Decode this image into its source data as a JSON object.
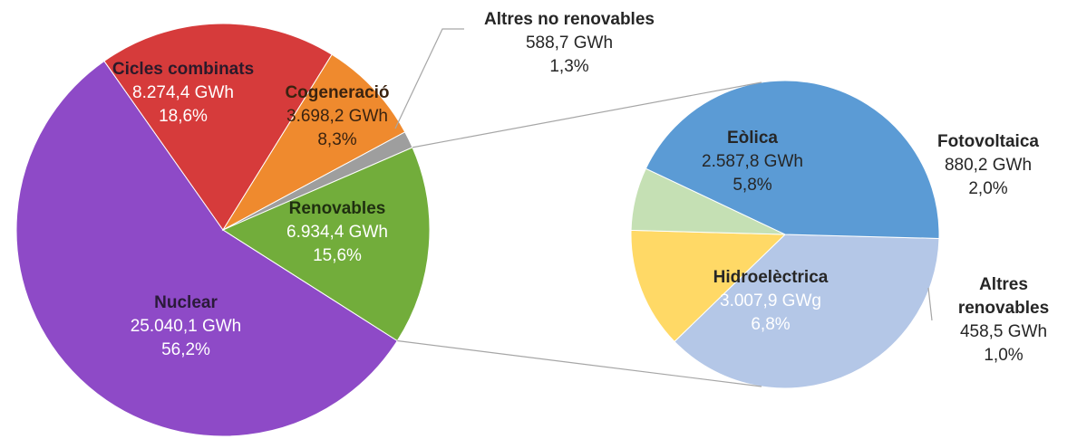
{
  "chart_data": [
    {
      "type": "pie",
      "unit": "GWh",
      "slices": [
        {
          "name": "Nuclear",
          "value_text": "25.040,1 GWh",
          "pct_text": "56,2%",
          "value": 25040.1,
          "pct": 56.2,
          "color": "#8e4ac7"
        },
        {
          "name": "Cicles combinats",
          "value_text": "8.274,4  GWh",
          "pct_text": "18,6%",
          "value": 8274.4,
          "pct": 18.6,
          "color": "#d63b3b"
        },
        {
          "name": "Cogeneració",
          "value_text": "3.698,2 GWh",
          "pct_text": "8,3%",
          "value": 3698.2,
          "pct": 8.3,
          "color": "#ef8a2e"
        },
        {
          "name": "Altres no renovables",
          "value_text": "588,7  GWh",
          "pct_text": "1,3%",
          "value": 588.7,
          "pct": 1.3,
          "color": "#9e9e9e"
        },
        {
          "name": "Renovables",
          "value_text": "6.934,4 GWh",
          "pct_text": "15,6%",
          "value": 6934.4,
          "pct": 15.6,
          "color": "#72ad3b"
        }
      ]
    },
    {
      "type": "pie",
      "unit": "GWh",
      "slices": [
        {
          "name": "Eòlica",
          "value_text": "2.587,8 GWh",
          "pct_text": "5,8%",
          "value": 2587.8,
          "pct": 5.8,
          "color": "#b4c7e7"
        },
        {
          "name": "Fotovoltaica",
          "value_text": "880,2 GWh",
          "pct_text": "2,0%",
          "value": 880.2,
          "pct": 2.0,
          "color": "#ffd966"
        },
        {
          "name": "Altres renovables",
          "value_text": "458,5  GWh",
          "pct_text": "1,0%",
          "value": 458.5,
          "pct": 1.0,
          "color": "#c5e0b4"
        },
        {
          "name": "Hidroelèctrica",
          "value_text": "3.007,9  GWg",
          "pct_text": "6,8%",
          "value": 3007.9,
          "pct": 6.8,
          "color": "#5b9bd5"
        }
      ]
    }
  ]
}
